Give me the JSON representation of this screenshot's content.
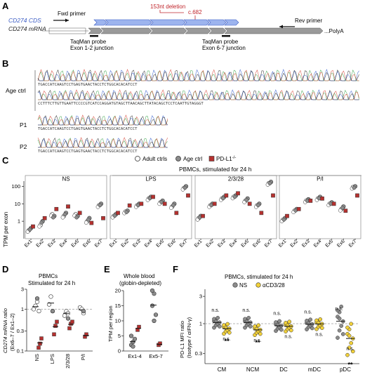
{
  "panelA": {
    "letter": "A",
    "cds_label": "CD274 CDS",
    "mrna_label": "CD274 mRNA",
    "fwd_primer": "Fwd primer",
    "rev_primer": "Rev primer",
    "deletion": "153nt deletion",
    "variant": "c.682",
    "probe1_line1": "TaqMan probe",
    "probe1_line2": "Exon 1-2 junction",
    "probe2_line1": "TaqMan probe",
    "probe2_line2": "Exon 6-7 junction",
    "polya": "...PolyA"
  },
  "panelB": {
    "letter": "B",
    "age_ctrl": "Age ctrl",
    "p1": "P1",
    "p2": "P2",
    "seq_age1": "TGACCATCAAGTCCTGAGTGAACTACCTCTGGCACACATCCT",
    "seq_age2": "CCTTTCTTGTTGAATTCCCCGTCATCCAGGATGTAGCTTAACAGCTTATACAGCTCCTCAATTGTAGGGT",
    "seq_p1": "TGACCATCAAGTCCTGAGTGAACTACCTCTGGCACACATCCT",
    "seq_p2": "TGACCATCAAGTCCTGAGTGAACTACCTCTGGCACACATCCT"
  },
  "panelC": {
    "letter": "C",
    "legend_adult": "Adult ctrls",
    "legend_age": "Age ctrl",
    "legend_pd": "PD-L1",
    "legend_pd_sup": "-/-",
    "title": "PBMCs, stimulated for 24 h",
    "ylabel": "TPM per exon",
    "yticks": [
      "100",
      "10",
      "1"
    ],
    "facets": [
      "NS",
      "LPS",
      "2/3/28",
      "P/I"
    ],
    "exons": [
      "Ex1",
      "Ex2",
      "Ex3",
      "Ex4",
      "Ex5",
      "Ex6",
      "Ex7"
    ]
  },
  "panelD": {
    "letter": "D",
    "title1": "PBMCs",
    "title2": "Stimulated for 24 h",
    "ylabel1": "CD274 mRNA ratio",
    "ylabel2": "(Ex6–7 / Ex1–2)",
    "yticks": [
      "3",
      "1",
      "0.3",
      "0.1"
    ],
    "cats": [
      "NS",
      "LPS",
      "2/3/28",
      "P/I"
    ]
  },
  "panelE": {
    "letter": "E",
    "title1": "Whole blood",
    "title2": "(globin-depleted)",
    "ylabel": "TPM per region",
    "yticks": [
      "20",
      "15",
      "10",
      "5",
      "0"
    ],
    "cats": [
      "Ex1-4",
      "Ex5-7"
    ]
  },
  "panelF": {
    "letter": "F",
    "title": "PBMCs, stimulated for 24 h",
    "legend_ns": "NS",
    "legend_cd": "αCD3/28",
    "ylabel1": "PD-L1  MFI ratio",
    "ylabel2": "(Isotype / αIFN-γ)",
    "yticks": [
      "3",
      "1",
      "0.3"
    ],
    "cats": [
      "CM",
      "NCM",
      "DC",
      "mDC",
      "pDC"
    ],
    "ns": "n.s.",
    "star": "**"
  },
  "colors": {
    "cds": "#9db4ee",
    "mrna": "#9a9a9a",
    "deletion": "#c0262c",
    "pd": "#b5312f",
    "yellow": "#f2d13a",
    "gray_pt": "#8c8c8c"
  },
  "chart_data": [
    {
      "type": "scatter",
      "panel": "C",
      "title": "PBMCs, stimulated for 24 h",
      "ylabel": "TPM per exon",
      "yscale": "log",
      "ylim": [
        0.1,
        200
      ],
      "facets": [
        "NS",
        "LPS",
        "2/3/28",
        "P/I"
      ],
      "categories": [
        "Ex1",
        "Ex2",
        "Ex3",
        "Ex4",
        "Ex5",
        "Ex6",
        "Ex7"
      ],
      "series": [
        {
          "name": "Adult ctrls",
          "values": {
            "NS": [
              0.3,
              0.6,
              2.5,
              2.0,
              2.5,
              1.0,
              8
            ],
            "LPS": [
              2,
              3.5,
              8,
              20,
              12,
              7,
              80
            ],
            "2/3/28": [
              1.5,
              8,
              20,
              25,
              15,
              8,
              150
            ],
            "P/I": [
              1.2,
              4,
              15,
              20,
              10,
              5,
              90
            ]
          }
        },
        {
          "name": "Age ctrl",
          "values": {
            "NS": [
              0.4,
              1.0,
              2.0,
              3.0,
              2.0,
              1.5,
              10
            ],
            "LPS": [
              2.5,
              4,
              10,
              25,
              15,
              10,
              100
            ],
            "2/3/28": [
              2,
              10,
              25,
              30,
              20,
              10,
              180
            ],
            "P/I": [
              1.5,
              5,
              18,
              25,
              12,
              7,
              100
            ]
          }
        },
        {
          "name": "PD-L1-/-",
          "values": {
            "NS": [
              0.5,
              1.5,
              5,
              7,
              3,
              0.8,
              1.5
            ],
            "LPS": [
              3,
              8,
              10,
              25,
              10,
              3,
              30
            ],
            "2/3/28": [
              2,
              10,
              30,
              40,
              10,
              3,
              30
            ],
            "P/I": [
              2,
              5,
              15,
              20,
              10,
              4,
              30
            ]
          }
        }
      ]
    },
    {
      "type": "scatter",
      "panel": "D",
      "title": "PBMCs Stimulated for 24 h",
      "yscale": "log",
      "ylim": [
        0.1,
        3
      ],
      "categories": [
        "NS",
        "LPS",
        "2/3/28",
        "P/I"
      ],
      "series": [
        {
          "name": "Adult ctrls",
          "values": [
            [
              1.0,
              1.2,
              1.5,
              0.9
            ],
            [
              1.3,
              2.0,
              0.9
            ],
            [
              0.7,
              0.9,
              0.8
            ],
            [
              1.1,
              1.0,
              0.8
            ]
          ]
        },
        {
          "name": "Age ctrl",
          "values": [
            1.8,
            0.9,
            0.6,
            0.9
          ]
        },
        {
          "name": "PD-L1-/-",
          "values": [
            [
              0.12,
              0.15,
              0.2
            ],
            [
              0.25,
              0.4,
              0.5
            ],
            [
              0.35,
              0.45,
              0.5
            ],
            [
              0.22,
              0.25
            ]
          ]
        }
      ]
    },
    {
      "type": "scatter",
      "panel": "E",
      "title": "Whole blood (globin-depleted)",
      "ylabel": "TPM per region",
      "ylim": [
        0,
        20
      ],
      "categories": [
        "Ex1-4",
        "Ex5-7"
      ],
      "series": [
        {
          "name": "Adult ctrls",
          "values": [
            [
              2,
              3,
              4,
              5,
              1.5
            ],
            [
              15,
              19,
              12,
              20,
              10
            ]
          ]
        },
        {
          "name": "PD-L1-/-",
          "values": [
            [
              7,
              8
            ],
            [
              2,
              2.5
            ]
          ]
        }
      ]
    },
    {
      "type": "scatter",
      "panel": "F",
      "title": "PBMCs, stimulated for 24 h",
      "yscale": "log",
      "ylim": [
        0.2,
        4
      ],
      "categories": [
        "CM",
        "NCM",
        "DC",
        "mDC",
        "pDC"
      ],
      "series": [
        {
          "name": "NS",
          "values": [
            1.05,
            1.05,
            0.92,
            0.98,
            1.1
          ]
        },
        {
          "name": "αCD3/28",
          "values": [
            0.82,
            0.78,
            0.9,
            0.99,
            0.55
          ]
        }
      ],
      "annotations": {
        "NS_label": "n.s.",
        "significant": "**"
      }
    }
  ]
}
